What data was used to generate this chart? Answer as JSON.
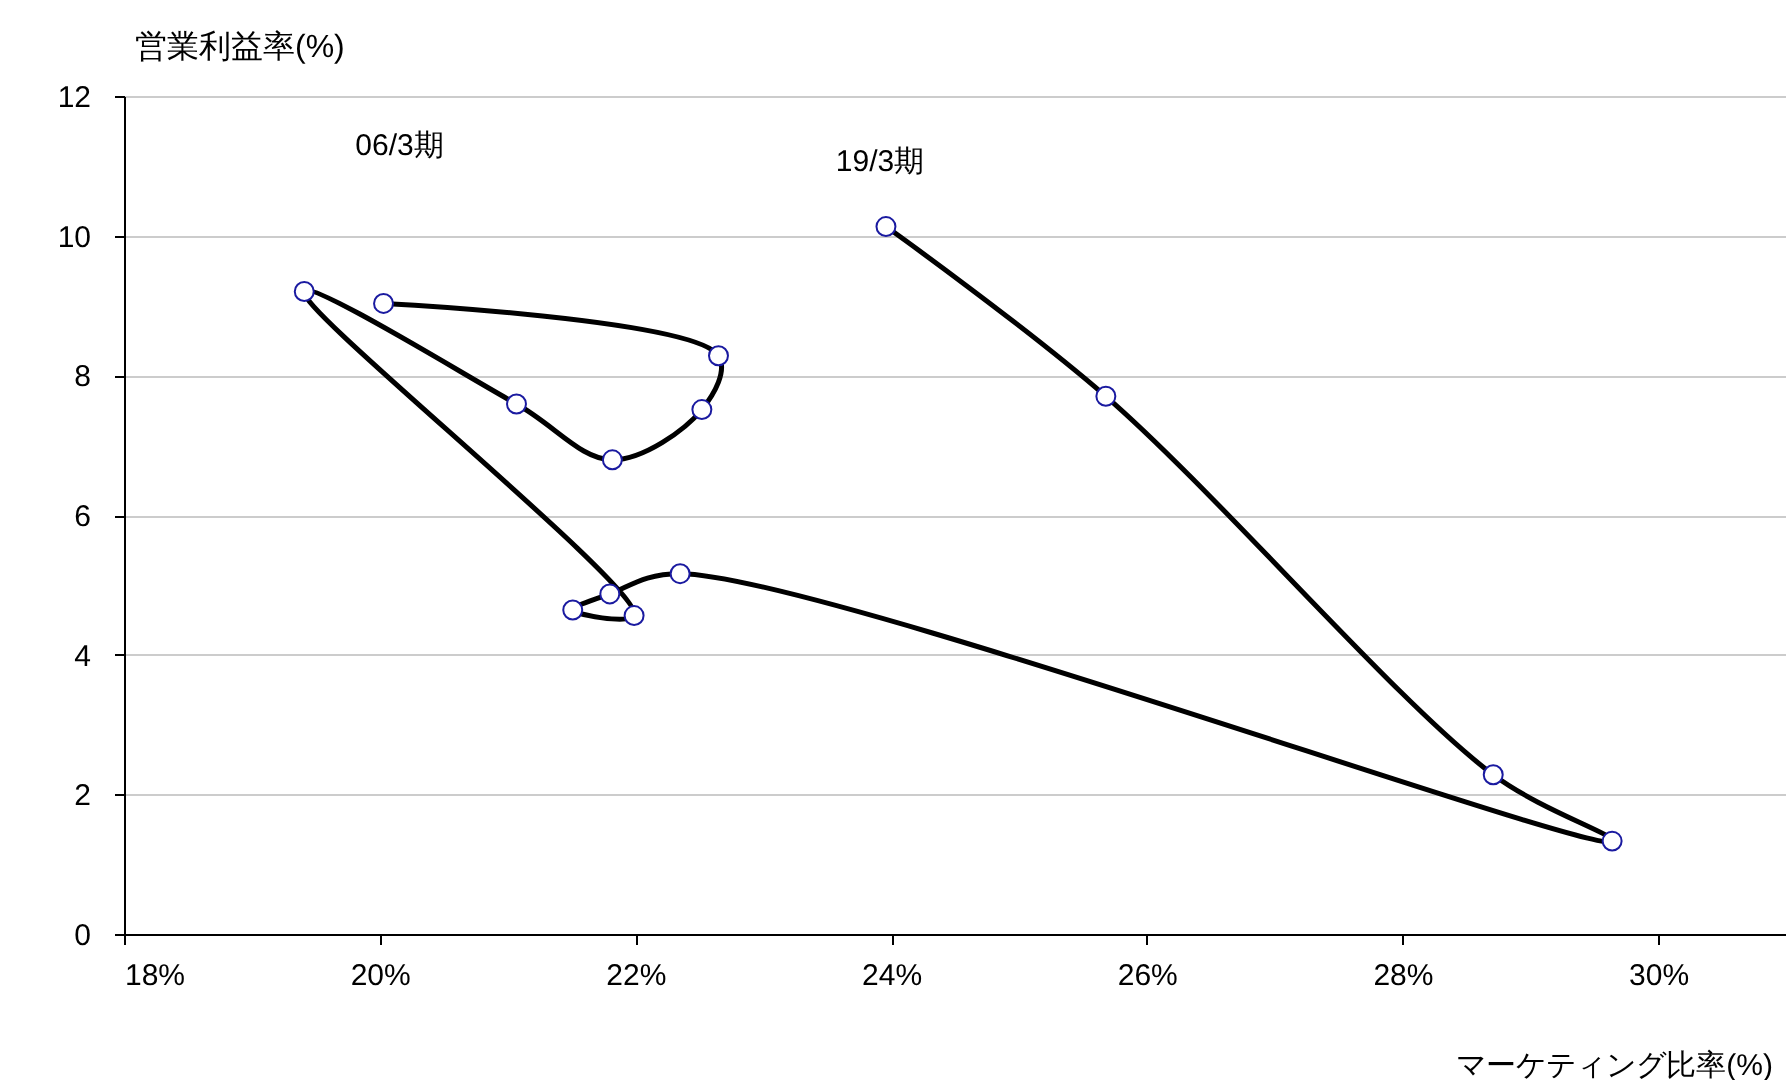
{
  "chart_data": {
    "type": "line",
    "xlabel": "マーケティング比率(%)",
    "ylabel": "営業利益率(%)",
    "series": [
      {
        "color": "#000000",
        "x": [
          20.03,
          22.65,
          22.52,
          21.82,
          21.07,
          19.41,
          21.99,
          21.51,
          21.8,
          22.35,
          29.64,
          28.71,
          25.68,
          23.96
        ],
        "values": [
          9.03,
          8.28,
          7.51,
          6.79,
          7.59,
          9.2,
          4.56,
          4.64,
          4.87,
          5.16,
          1.33,
          2.28,
          7.7,
          10.13
        ]
      }
    ],
    "xlim": [
      18,
      31
    ],
    "xticks": [
      {
        "value": 18,
        "label": "18%"
      },
      {
        "value": 20,
        "label": "20%"
      },
      {
        "value": 22,
        "label": "22%"
      },
      {
        "value": 24,
        "label": "24%"
      },
      {
        "value": 26,
        "label": "26%"
      },
      {
        "value": 28,
        "label": "28%"
      },
      {
        "value": 30,
        "label": "30%"
      }
    ],
    "ylim": [
      0,
      12
    ],
    "yticks": [
      0,
      2,
      4,
      6,
      8,
      10,
      12
    ],
    "grid": "y",
    "marker": "circle",
    "line_style": "solid",
    "annotations": [
      "06/3期",
      "19/3期"
    ]
  }
}
